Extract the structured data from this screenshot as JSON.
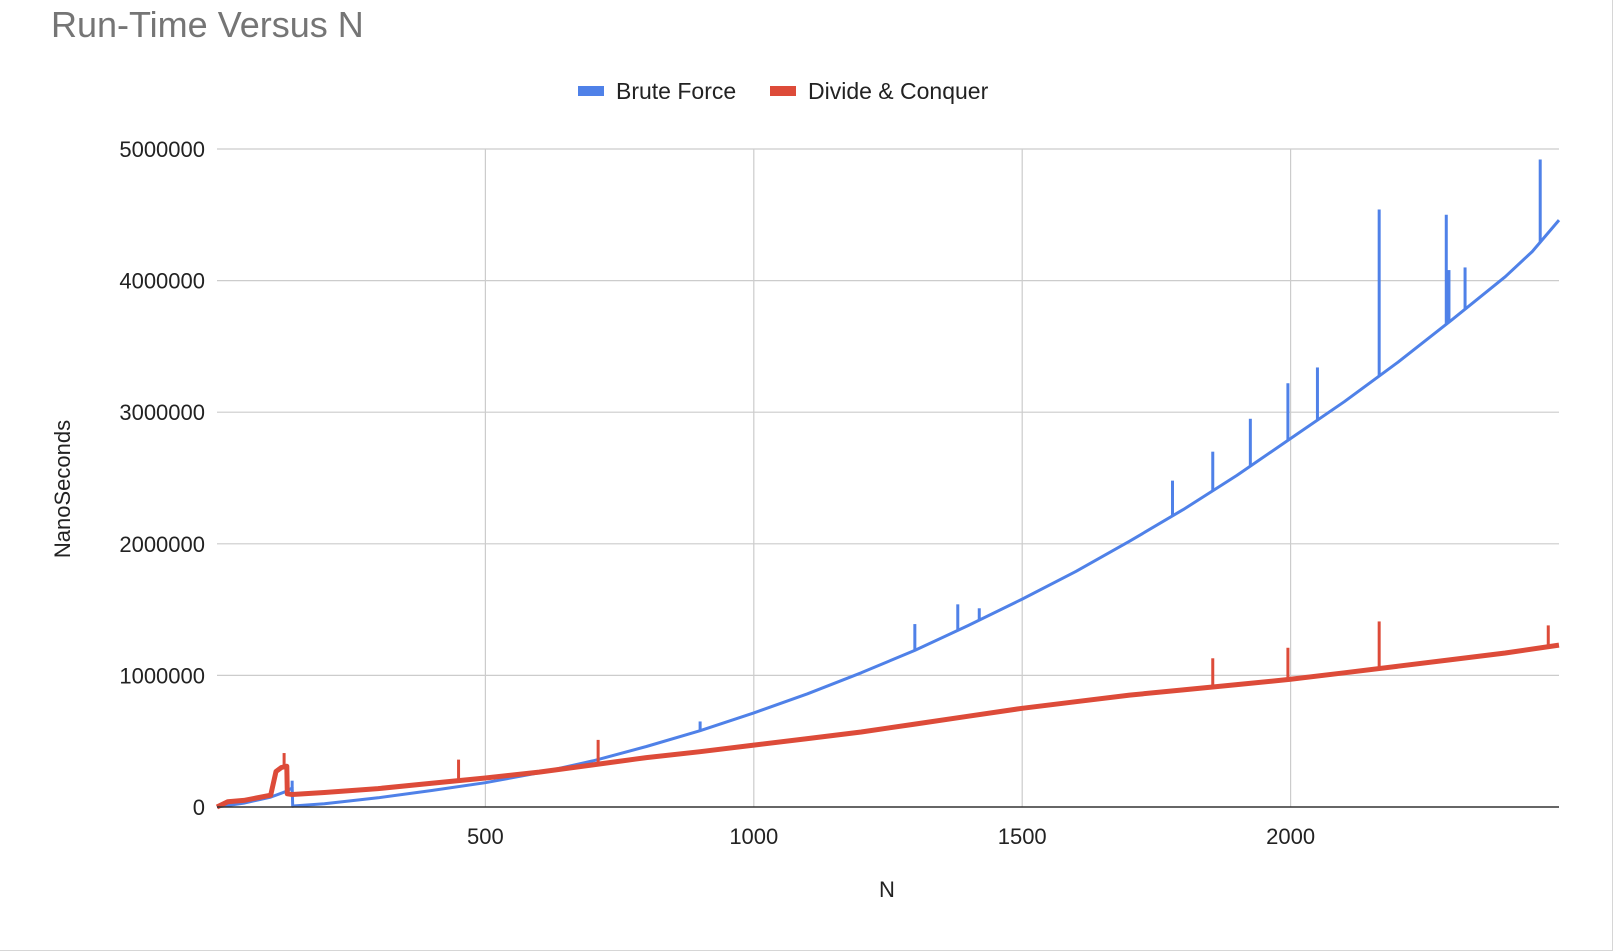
{
  "chart_data": {
    "type": "line",
    "title": "Run-Time Versus N",
    "xlabel": "N",
    "ylabel": "NanoSeconds",
    "xlim": [
      0,
      2500
    ],
    "ylim": [
      0,
      5000000
    ],
    "x_ticks": [
      500,
      1000,
      1500,
      2000
    ],
    "y_ticks": [
      0,
      1000000,
      2000000,
      3000000,
      4000000,
      5000000
    ],
    "x_tick_labels": [
      "500",
      "1000",
      "1500",
      "2000"
    ],
    "y_tick_labels": [
      "0",
      "1000000",
      "2000000",
      "3000000",
      "4000000",
      "5000000"
    ],
    "grid": true,
    "legend_position": "top-center",
    "series": [
      {
        "name": "Brute Force",
        "color": "#4f81e8",
        "x": [
          0,
          50,
          100,
          130,
          140,
          141,
          145,
          200,
          300,
          400,
          500,
          600,
          700,
          800,
          900,
          1000,
          1100,
          1200,
          1300,
          1400,
          1500,
          1600,
          1700,
          1800,
          1900,
          2000,
          2100,
          2200,
          2300,
          2400,
          2450,
          2500
        ],
        "values": [
          0,
          30000,
          75000,
          120000,
          145000,
          5000,
          8000,
          25000,
          70000,
          125000,
          185000,
          260000,
          350000,
          460000,
          580000,
          715000,
          860000,
          1020000,
          1190000,
          1380000,
          1580000,
          1790000,
          2020000,
          2260000,
          2520000,
          2800000,
          3080000,
          3380000,
          3700000,
          4030000,
          4220000,
          4460000
        ],
        "spikes": [
          {
            "x": 140,
            "y": 200000
          },
          {
            "x": 900,
            "y": 650000
          },
          {
            "x": 1300,
            "y": 1390000
          },
          {
            "x": 1380,
            "y": 1540000
          },
          {
            "x": 1420,
            "y": 1510000
          },
          {
            "x": 1780,
            "y": 2480000
          },
          {
            "x": 1855,
            "y": 2700000
          },
          {
            "x": 1925,
            "y": 2950000
          },
          {
            "x": 1995,
            "y": 3220000
          },
          {
            "x": 2050,
            "y": 3340000
          },
          {
            "x": 2165,
            "y": 4540000
          },
          {
            "x": 2290,
            "y": 4500000
          },
          {
            "x": 2295,
            "y": 4080000
          },
          {
            "x": 2325,
            "y": 4100000
          },
          {
            "x": 2465,
            "y": 4920000
          }
        ]
      },
      {
        "name": "Divide & Conquer",
        "color": "#dd4b39",
        "x": [
          0,
          20,
          50,
          100,
          110,
          120,
          130,
          131,
          140,
          200,
          300,
          400,
          500,
          600,
          700,
          800,
          900,
          1000,
          1100,
          1200,
          1300,
          1400,
          1500,
          1600,
          1700,
          1800,
          1900,
          2000,
          2100,
          2200,
          2300,
          2400,
          2500
        ],
        "values": [
          0,
          40000,
          50000,
          90000,
          270000,
          300000,
          310000,
          100000,
          95000,
          110000,
          140000,
          180000,
          220000,
          265000,
          320000,
          375000,
          420000,
          470000,
          520000,
          570000,
          630000,
          690000,
          750000,
          800000,
          850000,
          890000,
          930000,
          970000,
          1020000,
          1070000,
          1120000,
          1170000,
          1230000
        ],
        "spikes": [
          {
            "x": 125,
            "y": 410000
          },
          {
            "x": 450,
            "y": 360000
          },
          {
            "x": 710,
            "y": 510000
          },
          {
            "x": 1855,
            "y": 1130000
          },
          {
            "x": 1995,
            "y": 1210000
          },
          {
            "x": 2165,
            "y": 1410000
          },
          {
            "x": 2480,
            "y": 1380000
          }
        ]
      }
    ]
  }
}
